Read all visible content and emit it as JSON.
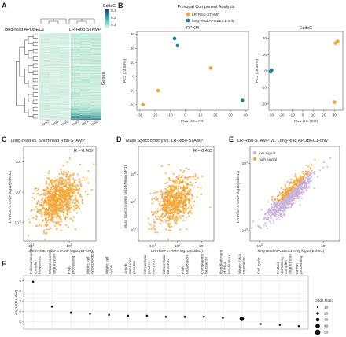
{
  "colors": {
    "orange": "#f4a534",
    "blue": "#1a7fa0",
    "lilac": "#c9b3d8",
    "heat_low": "#ecf7ef",
    "heat_high": "#1d6e85"
  },
  "panels": {
    "A": {
      "label": "A",
      "legend_title": "EditsC",
      "legend_ticks": [
        "0.3",
        "0.2",
        "0.1"
      ],
      "group_left": "long-read APOBEC1",
      "group_right": "LR-Ribo-STAMP",
      "axis_label": "Genes",
      "columns": [
        "rep3",
        "rep1",
        "rep2",
        "rep3",
        "rep1",
        "rep2"
      ]
    },
    "B": {
      "label": "B",
      "title": "Principal Component Analysis",
      "legend": [
        "LR-Ribo-STAMP",
        "long-read APOBEC1-only"
      ]
    },
    "C": {
      "label": "C",
      "title": "Long-read vs. Short-read Ribo-STAMP",
      "r_text": "R = 0.409",
      "ylabel": "LR-Ribo-STAMP log10(EditsC)",
      "xlabel": "Short-read Ribo-STAMP log10(EPKM)"
    },
    "D": {
      "label": "D",
      "title": "Mass Spectrometry vs. LR-Ribo-STAMP",
      "r_text": "R = 0.403",
      "ylabel": "Mass Spectrometry log10(Mean LFQ)",
      "xlabel": "LR-Ribo-STAMP log10(EditsC)"
    },
    "E": {
      "label": "E",
      "title": "LR-Ribo-STAMP vs. Long-read APOBEC1-only",
      "legend": [
        "low signal",
        "high signal"
      ],
      "ylabel": "LR-Ribo-STAMP log10(EditsC)",
      "xlabel": "long-read APOBEC1-only log10(EditsC)"
    },
    "F": {
      "label": "F",
      "ylabel": "-log10(P value)",
      "size_legend_title": "Odds Ratio",
      "size_legend": [
        10,
        20,
        30,
        40,
        50
      ]
    }
  },
  "chart_data": [
    {
      "type": "scatter",
      "panel": "B-left",
      "title": "RPKM",
      "xlabel": "PC1 (49.37%)",
      "ylabel": "PC2 (24.58%)",
      "xlim": [
        -32,
        42
      ],
      "ylim": [
        -24,
        32
      ],
      "xticks": [
        -30,
        -20,
        -10,
        0,
        10,
        20,
        30,
        40
      ],
      "yticks": [
        -20,
        -10,
        0,
        10,
        20,
        30
      ],
      "series": [
        {
          "name": "LR-Ribo-STAMP",
          "points": [
            [
              -28,
              -20
            ],
            [
              -18,
              -10
            ],
            [
              17,
              6
            ]
          ]
        },
        {
          "name": "long-read APOBEC1-only",
          "points": [
            [
              -7,
              27
            ],
            [
              -5,
              22
            ],
            [
              38,
              -17
            ]
          ]
        }
      ]
    },
    {
      "type": "scatter",
      "panel": "B-right",
      "title": "EditsC",
      "xlabel": "PC1 (70.78%)",
      "ylabel": "PC2 (18.30%)",
      "xlim": [
        -32,
        38
      ],
      "ylim": [
        -24,
        24
      ],
      "xticks": [
        -30,
        -20,
        -10,
        0,
        10,
        20,
        30
      ],
      "yticks": [
        -20,
        -10,
        0,
        10,
        20
      ],
      "series": [
        {
          "name": "LR-Ribo-STAMP",
          "points": [
            [
              31,
              17
            ],
            [
              30,
              -19
            ],
            [
              33,
              18
            ]
          ]
        },
        {
          "name": "long-read APOBEC1-only",
          "points": [
            [
              -30,
              0
            ],
            [
              -29.5,
              0.5
            ],
            [
              -30.5,
              -0.5
            ]
          ]
        }
      ]
    },
    {
      "type": "scatter",
      "panel": "C",
      "x_log_range": [
        2.6,
        6.4
      ],
      "y_log_range": [
        -1.6,
        1.5
      ],
      "xticks": [
        "10^3",
        "10^5"
      ],
      "yticks": [
        "10^-1",
        "10^0",
        "10^1"
      ],
      "cloud": {
        "cx": 4.4,
        "cy": -0.25,
        "sx": 0.55,
        "sy": 0.42,
        "rho": 0.41,
        "n": 900
      }
    },
    {
      "type": "scatter",
      "panel": "D",
      "x_log_range": [
        -1.6,
        1.5
      ],
      "y_log_range": [
        4.2,
        11
      ],
      "xticks": [
        "10^-1",
        "10^0",
        "10^1"
      ],
      "yticks": [
        "10^5",
        "10^7",
        "10^9"
      ],
      "cloud": {
        "cx": -0.1,
        "cy": 7.1,
        "sx": 0.4,
        "sy": 0.9,
        "rho": 0.4,
        "n": 700
      }
    },
    {
      "type": "scatter",
      "panel": "E",
      "x_log_range": [
        -0.3,
        2.5
      ],
      "y_log_range": [
        -0.3,
        2.5
      ],
      "xticks": [
        "10^0",
        "10^2"
      ],
      "yticks": [
        "10^0",
        "10^2"
      ],
      "cloud": {
        "cx": 0.95,
        "cy": 1.05,
        "sx": 0.35,
        "sy": 0.35,
        "rho": 0.88,
        "n": 900
      }
    },
    {
      "type": "scatter",
      "panel": "F",
      "ylabel": "-log10(P value)",
      "ylim": [
        4.3,
        9.5
      ],
      "categories": [
        "Ribonucleoprotein complex biogenesis",
        "Chromosome organization",
        "RNA processing",
        "Mitotic cell cycle process",
        "Mitotic cell cycle",
        "Amide metabolic process",
        "Intracellular protein transport",
        "Intracellular transport",
        "RNA localization",
        "Cytoplasmic translation",
        "Establishment of RNA localization",
        "Mitotic DNA replication",
        "Cell cycle",
        "Protein containing complex organization",
        "mRNA processing"
      ],
      "values": [
        8.9,
        6.5,
        5.9,
        5.8,
        5.7,
        5.6,
        5.6,
        5.5,
        5.5,
        5.5,
        5.4,
        5.3,
        4.8,
        4.7,
        4.6
      ],
      "odds_ratio": [
        12,
        14,
        15,
        13,
        12,
        14,
        13,
        12,
        15,
        14,
        13,
        40,
        10,
        11,
        12
      ]
    }
  ]
}
